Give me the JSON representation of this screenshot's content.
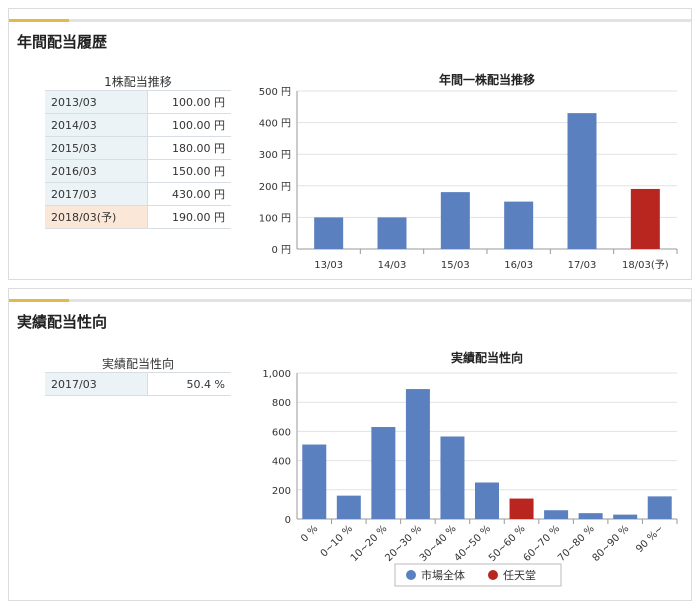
{
  "section1": {
    "title": "年間配当履歴",
    "table": {
      "caption": "1株配当推移",
      "rows": [
        {
          "year": "2013/03",
          "value": "100.00 円"
        },
        {
          "year": "2014/03",
          "value": "100.00 円"
        },
        {
          "year": "2015/03",
          "value": "180.00 円"
        },
        {
          "year": "2016/03",
          "value": "150.00 円"
        },
        {
          "year": "2017/03",
          "value": "430.00 円"
        },
        {
          "year": "2018/03(予)",
          "value": "190.00 円",
          "forecast": true
        }
      ]
    }
  },
  "section2": {
    "title": "実績配当性向",
    "table": {
      "caption": "実績配当性向",
      "rows": [
        {
          "year": "2017/03",
          "value": "50.4 %"
        }
      ]
    }
  },
  "colors": {
    "accent_line": "#e2b94b",
    "bar_blue": "#5b80c0",
    "bar_red": "#b8261f",
    "table_year_bg": "#ebf3f7",
    "table_forecast_bg": "#fbe7d7"
  },
  "chart_data": [
    {
      "type": "bar",
      "title": "年間一株配当推移",
      "categories": [
        "13/03",
        "14/03",
        "15/03",
        "16/03",
        "17/03",
        "18/03(予)"
      ],
      "values": [
        100,
        100,
        180,
        150,
        430,
        190
      ],
      "highlight_index": 5,
      "ylim": [
        0,
        500
      ],
      "yticks": [
        0,
        100,
        200,
        300,
        400,
        500
      ],
      "ytick_labels": [
        "0 円",
        "100 円",
        "200 円",
        "300 円",
        "400 円",
        "500 円"
      ],
      "grid": true
    },
    {
      "type": "bar",
      "title": "実績配当性向",
      "categories": [
        "0 %",
        "0~10 %",
        "10~20 %",
        "20~30 %",
        "30~40 %",
        "40~50 %",
        "50~60 %",
        "60~70 %",
        "70~80 %",
        "80~90 %",
        "90 %~"
      ],
      "series": [
        {
          "name": "市場全体",
          "values": [
            510,
            160,
            630,
            890,
            565,
            250,
            0,
            60,
            40,
            30,
            155
          ]
        },
        {
          "name": "任天堂",
          "values": [
            0,
            0,
            0,
            0,
            0,
            0,
            140,
            0,
            0,
            0,
            0
          ]
        }
      ],
      "ylim": [
        0,
        1000
      ],
      "yticks": [
        0,
        200,
        400,
        600,
        800,
        1000
      ],
      "ytick_labels": [
        "0",
        "200",
        "400",
        "600",
        "800",
        "1,000"
      ],
      "grid": true,
      "legend": "bottom"
    }
  ]
}
